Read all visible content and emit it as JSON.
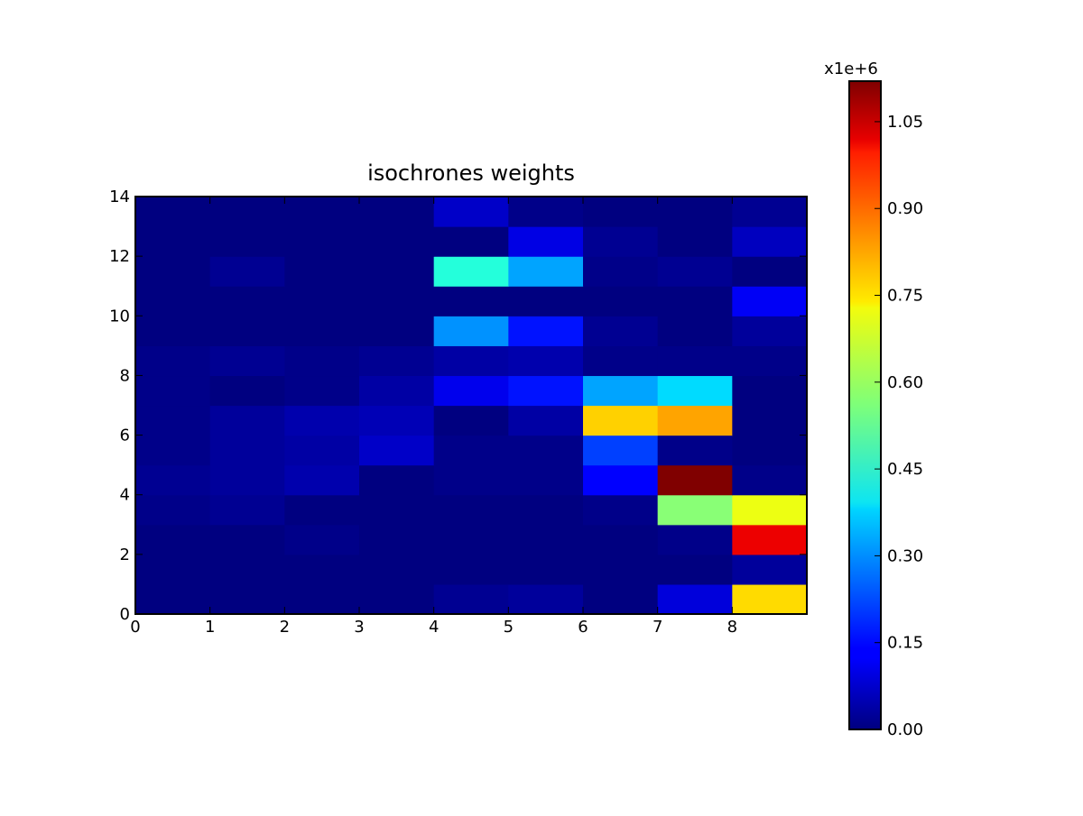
{
  "chart_data": {
    "type": "heatmap",
    "title": "isochrones weights",
    "xlabel": "",
    "ylabel": "",
    "xlim": [
      0,
      9
    ],
    "ylim": [
      0,
      14
    ],
    "x_ticks": [
      "0",
      "1",
      "2",
      "3",
      "4",
      "5",
      "6",
      "7",
      "8"
    ],
    "y_ticks": [
      "0",
      "2",
      "4",
      "6",
      "8",
      "10",
      "12",
      "14"
    ],
    "colorbar": {
      "colormap": "jet",
      "vmin": 0,
      "vmax": 1.12,
      "multiplier_label": "x1e+6",
      "ticks": [
        "0.00",
        "0.15",
        "0.30",
        "0.45",
        "0.60",
        "0.75",
        "0.90",
        "1.05"
      ]
    },
    "grid": false,
    "rows_bottom_to_top": [
      [
        0.0,
        0.0,
        0.0,
        0.0,
        0.02,
        0.03,
        0.0,
        0.1,
        0.74
      ],
      [
        0.0,
        0.0,
        0.0,
        0.0,
        0.0,
        0.0,
        0.0,
        0.0,
        0.03
      ],
      [
        0.0,
        0.0,
        0.01,
        0.0,
        0.0,
        0.0,
        0.0,
        0.01,
        1.0
      ],
      [
        0.01,
        0.02,
        0.0,
        0.0,
        0.0,
        0.0,
        0.01,
        0.57,
        0.68
      ],
      [
        0.02,
        0.03,
        0.05,
        0.0,
        0.01,
        0.01,
        0.14,
        1.12,
        0.01
      ],
      [
        0.01,
        0.03,
        0.04,
        0.08,
        0.01,
        0.01,
        0.21,
        0.01,
        0.0
      ],
      [
        0.01,
        0.03,
        0.05,
        0.06,
        0.0,
        0.04,
        0.75,
        0.8,
        0.0
      ],
      [
        0.01,
        0.0,
        0.01,
        0.04,
        0.12,
        0.16,
        0.32,
        0.38,
        0.0
      ],
      [
        0.01,
        0.02,
        0.01,
        0.02,
        0.04,
        0.05,
        0.01,
        0.01,
        0.01
      ],
      [
        0.0,
        0.0,
        0.0,
        0.0,
        0.3,
        0.16,
        0.02,
        0.0,
        0.03
      ],
      [
        0.0,
        0.0,
        0.0,
        0.0,
        0.0,
        0.0,
        0.0,
        0.0,
        0.13
      ],
      [
        0.0,
        0.02,
        0.0,
        0.0,
        0.46,
        0.32,
        0.01,
        0.02,
        0.0
      ],
      [
        0.0,
        0.0,
        0.0,
        0.0,
        0.0,
        0.11,
        0.02,
        0.0,
        0.07
      ],
      [
        0.0,
        0.0,
        0.0,
        0.0,
        0.08,
        0.01,
        0.0,
        0.0,
        0.02
      ]
    ]
  }
}
